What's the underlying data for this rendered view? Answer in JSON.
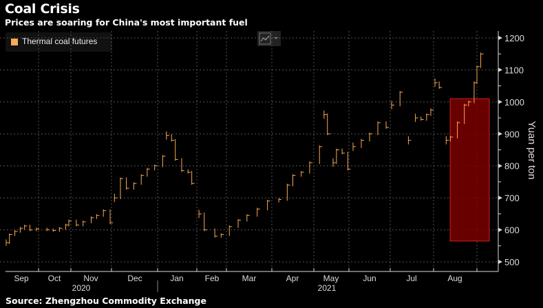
{
  "chart_data": {
    "type": "line",
    "title": "Coal Crisis",
    "subtitle": "Prices are soaring for China's most important fuel",
    "source": "Source: Zhengzhou Commodity Exchange",
    "legend": [
      {
        "name": "Thermal coal futures",
        "color": "#fbab55"
      }
    ],
    "legend_position": "top-left",
    "ylabel": "Yuan per ton",
    "ylim": [
      500,
      1200
    ],
    "yticks": [
      "500",
      "600",
      "700",
      "800",
      "900",
      "1000",
      "1100",
      "1200"
    ],
    "xticks": [
      "Sep",
      "Oct",
      "Nov",
      "Dec",
      "Jan",
      "Feb",
      "Mar",
      "Apr",
      "May",
      "Jun",
      "Jul",
      "Aug"
    ],
    "years": [
      "2020",
      "2021"
    ],
    "grid": true,
    "highlight": {
      "from": "2021-08-02",
      "to": "2021-08-31",
      "ymin": 565,
      "ymax": 1010,
      "color": "#7a0000"
    },
    "series": [
      {
        "name": "Thermal coal futures",
        "points": [
          [
            "2020-09-01",
            560
          ],
          [
            "2020-09-04",
            585
          ],
          [
            "2020-09-09",
            595
          ],
          [
            "2020-09-14",
            605
          ],
          [
            "2020-09-18",
            612
          ],
          [
            "2020-09-23",
            600
          ],
          [
            "2020-09-29",
            603
          ],
          [
            "2020-10-09",
            600
          ],
          [
            "2020-10-15",
            598
          ],
          [
            "2020-10-21",
            605
          ],
          [
            "2020-10-27",
            615
          ],
          [
            "2020-10-30",
            628
          ],
          [
            "2020-11-05",
            615
          ],
          [
            "2020-11-10",
            625
          ],
          [
            "2020-11-16",
            638
          ],
          [
            "2020-11-20",
            645
          ],
          [
            "2020-11-25",
            660
          ],
          [
            "2020-11-30",
            622
          ],
          [
            "2020-12-03",
            700
          ],
          [
            "2020-12-07",
            760
          ],
          [
            "2020-12-11",
            730
          ],
          [
            "2020-12-16",
            745
          ],
          [
            "2020-12-21",
            770
          ],
          [
            "2020-12-25",
            790
          ],
          [
            "2020-12-30",
            800
          ],
          [
            "2021-01-05",
            830
          ],
          [
            "2021-01-08",
            895
          ],
          [
            "2021-01-12",
            880
          ],
          [
            "2021-01-15",
            820
          ],
          [
            "2021-01-20",
            785
          ],
          [
            "2021-01-25",
            780
          ],
          [
            "2021-01-28",
            745
          ],
          [
            "2021-02-03",
            650
          ],
          [
            "2021-02-08",
            600
          ],
          [
            "2021-02-18",
            580
          ],
          [
            "2021-02-24",
            585
          ],
          [
            "2021-03-03",
            610
          ],
          [
            "2021-03-09",
            630
          ],
          [
            "2021-03-15",
            645
          ],
          [
            "2021-03-22",
            665
          ],
          [
            "2021-03-29",
            690
          ],
          [
            "2021-04-06",
            695
          ],
          [
            "2021-04-12",
            740
          ],
          [
            "2021-04-16",
            770
          ],
          [
            "2021-04-22",
            780
          ],
          [
            "2021-04-28",
            810
          ],
          [
            "2021-05-06",
            860
          ],
          [
            "2021-05-10",
            960
          ],
          [
            "2021-05-13",
            900
          ],
          [
            "2021-05-18",
            810
          ],
          [
            "2021-05-21",
            850
          ],
          [
            "2021-05-26",
            840
          ],
          [
            "2021-05-31",
            790
          ],
          [
            "2021-06-04",
            860
          ],
          [
            "2021-06-10",
            880
          ],
          [
            "2021-06-16",
            900
          ],
          [
            "2021-06-22",
            935
          ],
          [
            "2021-06-28",
            920
          ],
          [
            "2021-07-02",
            990
          ],
          [
            "2021-07-08",
            1030
          ],
          [
            "2021-07-14",
            880
          ],
          [
            "2021-07-19",
            950
          ],
          [
            "2021-07-23",
            945
          ],
          [
            "2021-07-27",
            960
          ],
          [
            "2021-07-30",
            975
          ],
          [
            "2021-08-02",
            1060
          ],
          [
            "2021-08-05",
            1045
          ],
          [
            "2021-08-10",
            880
          ],
          [
            "2021-08-13",
            890
          ],
          [
            "2021-08-18",
            935
          ],
          [
            "2021-08-23",
            990
          ],
          [
            "2021-08-26",
            1000
          ],
          [
            "2021-08-30",
            1060
          ],
          [
            "2021-09-01",
            1110
          ],
          [
            "2021-09-03",
            1150
          ]
        ]
      }
    ]
  }
}
